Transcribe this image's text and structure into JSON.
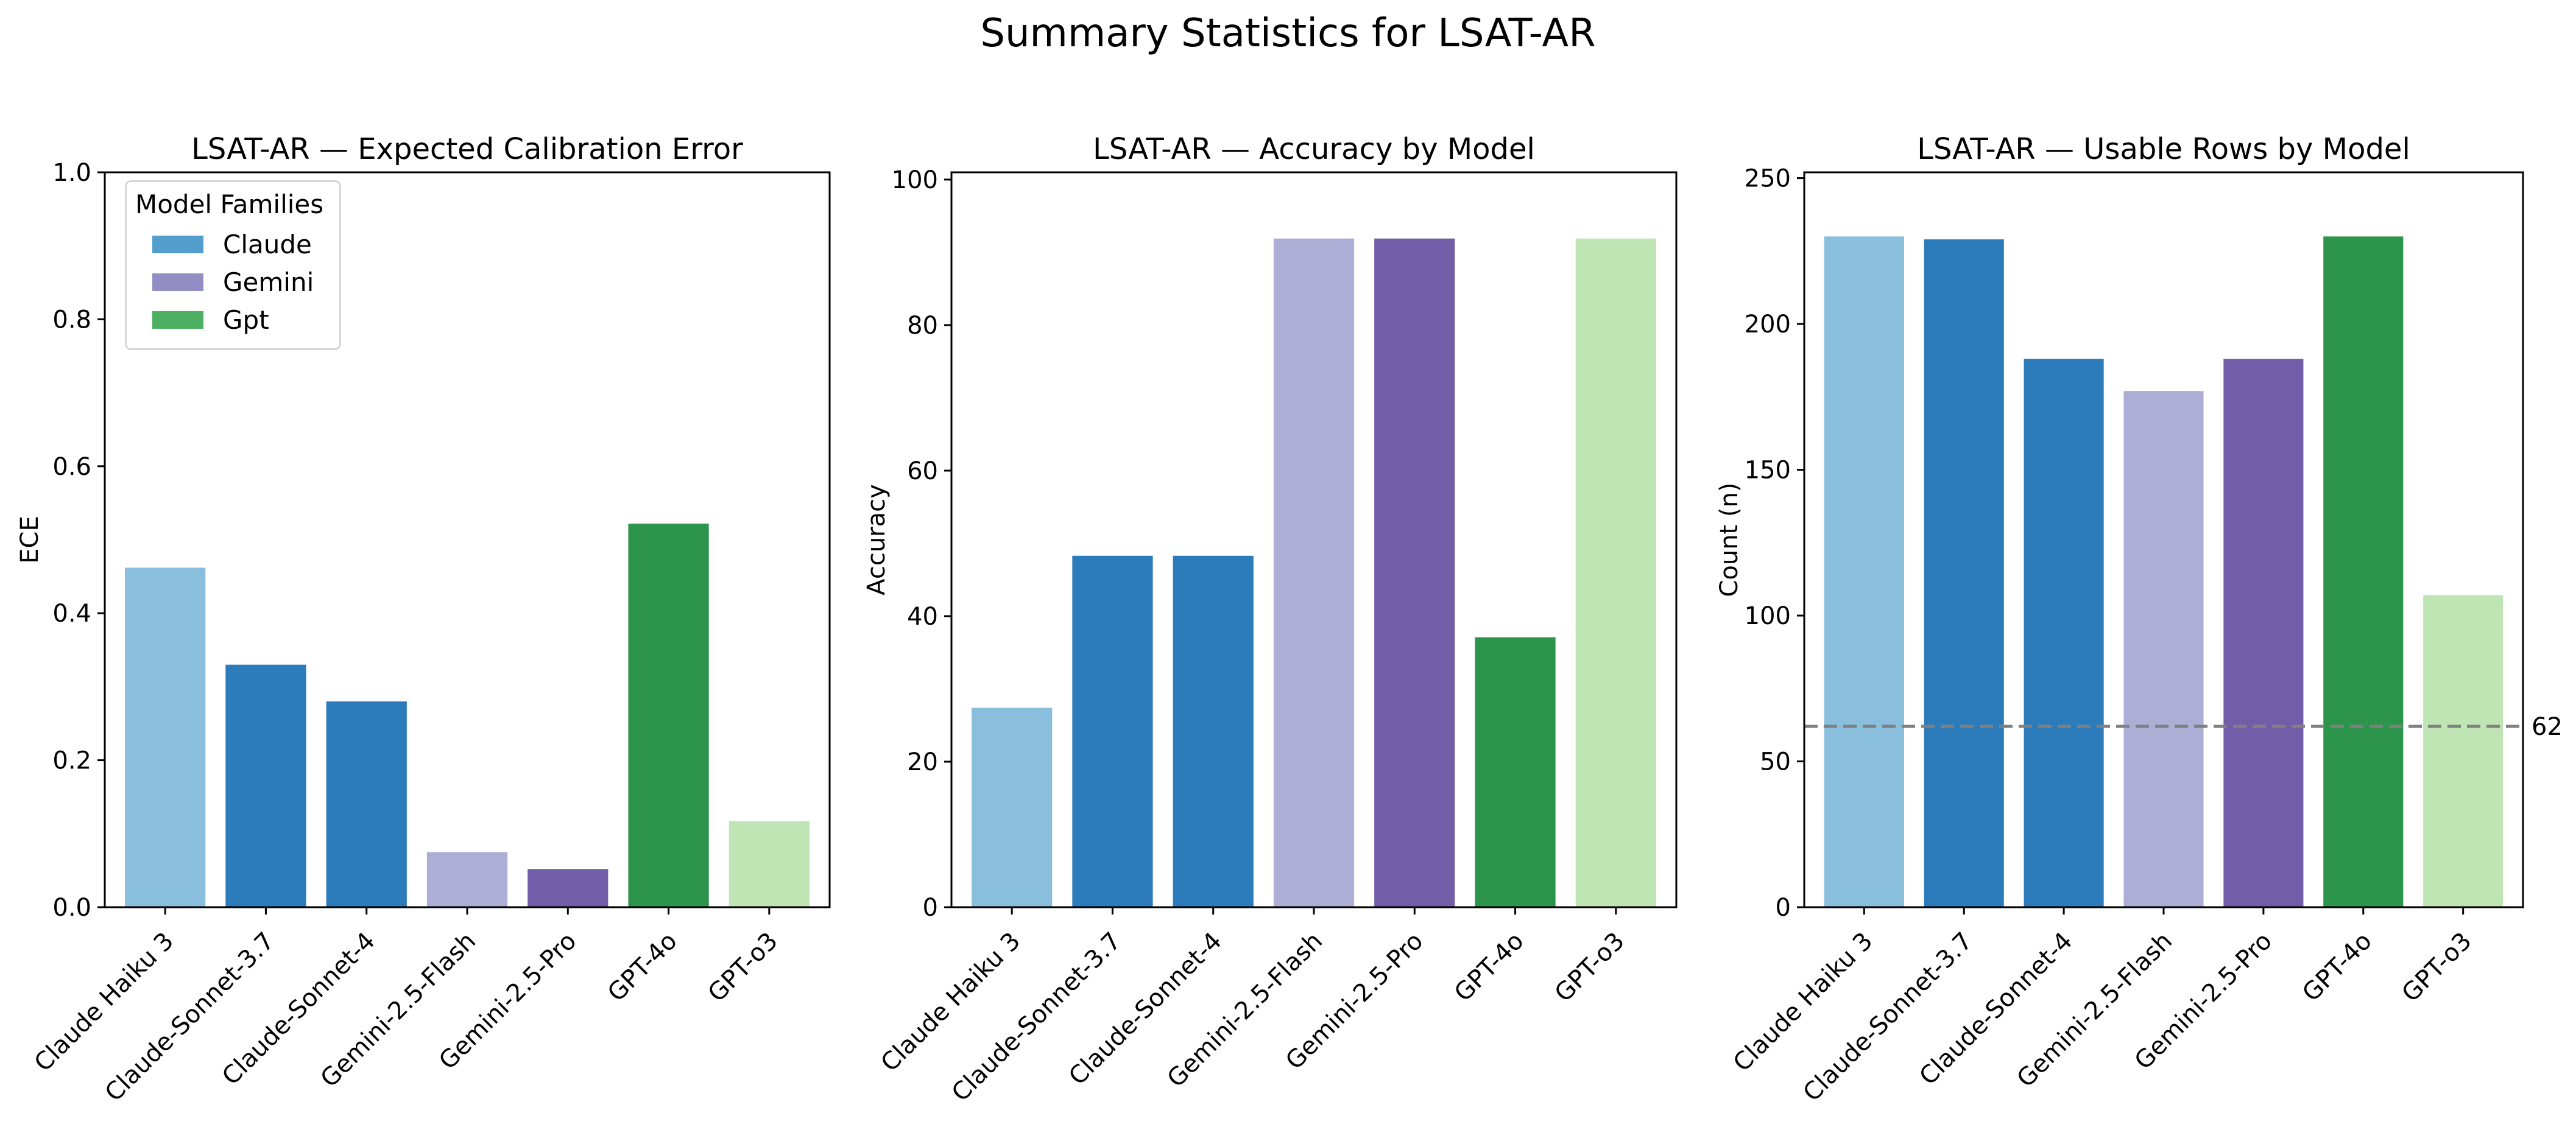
{
  "figure": {
    "suptitle": "Summary Statistics for LSAT-AR"
  },
  "legend": {
    "title": "Model Families",
    "items": [
      {
        "label": "Claude",
        "color": "#539ecd"
      },
      {
        "label": "Gemini",
        "color": "#928ec4"
      },
      {
        "label": "Gpt",
        "color": "#4daf61"
      }
    ]
  },
  "chart_data": [
    {
      "type": "bar",
      "title": "LSAT-AR — Expected Calibration Error",
      "xlabel": "",
      "ylabel": "ECE",
      "ylim": [
        0,
        1.0
      ],
      "yticks": [
        0.0,
        0.2,
        0.4,
        0.6,
        0.8,
        1.0
      ],
      "ytick_labels": [
        "0.0",
        "0.2",
        "0.4",
        "0.6",
        "0.8",
        "1.0"
      ],
      "categories": [
        "Claude Haiku 3",
        "Claude-Sonnet-3.7",
        "Claude-Sonnet-4",
        "Gemini-2.5-Flash",
        "Gemini-2.5-Pro",
        "GPT-4o",
        "GPT-o3"
      ],
      "values": [
        0.462,
        0.33,
        0.28,
        0.075,
        0.052,
        0.522,
        0.117
      ],
      "colors": [
        "#89bedc",
        "#2c7bba",
        "#2c7bba",
        "#adadd5",
        "#715ea9",
        "#2d944b",
        "#bfe5b5"
      ],
      "legend_position": "upper left",
      "grid": false
    },
    {
      "type": "bar",
      "title": "LSAT-AR — Accuracy by Model",
      "xlabel": "",
      "ylabel": "Accuracy",
      "ylim": [
        0,
        101
      ],
      "yticks": [
        0,
        20,
        40,
        60,
        80,
        100
      ],
      "ytick_labels": [
        "0",
        "20",
        "40",
        "60",
        "80",
        "100"
      ],
      "categories": [
        "Claude Haiku 3",
        "Claude-Sonnet-3.7",
        "Claude-Sonnet-4",
        "Gemini-2.5-Flash",
        "Gemini-2.5-Pro",
        "GPT-4o",
        "GPT-o3"
      ],
      "values": [
        27.4,
        48.3,
        48.3,
        91.9,
        91.9,
        37.1,
        91.9
      ],
      "colors": [
        "#89bedc",
        "#2c7bba",
        "#2c7bba",
        "#adadd5",
        "#715ea9",
        "#2d944b",
        "#bfe5b5"
      ],
      "grid": false
    },
    {
      "type": "bar",
      "title": "LSAT-AR — Usable Rows by Model",
      "xlabel": "",
      "ylabel": "Count (n)",
      "ylim": [
        0,
        252
      ],
      "yticks": [
        0,
        50,
        100,
        150,
        200,
        250
      ],
      "ytick_labels": [
        "0",
        "50",
        "100",
        "150",
        "200",
        "250"
      ],
      "categories": [
        "Claude Haiku 3",
        "Claude-Sonnet-3.7",
        "Claude-Sonnet-4",
        "Gemini-2.5-Flash",
        "Gemini-2.5-Pro",
        "GPT-4o",
        "GPT-o3"
      ],
      "values": [
        230,
        229,
        188,
        177,
        188,
        230,
        107
      ],
      "colors": [
        "#89bedc",
        "#2c7bba",
        "#2c7bba",
        "#adadd5",
        "#715ea9",
        "#2d944b",
        "#bfe5b5"
      ],
      "reference_line": {
        "value": 62,
        "label": "62",
        "style": "dashed",
        "color": "#808080"
      },
      "grid": false
    }
  ]
}
